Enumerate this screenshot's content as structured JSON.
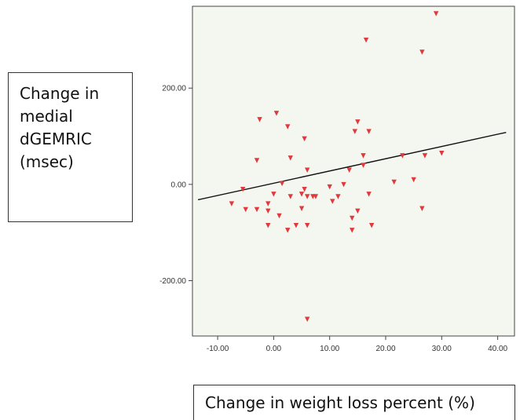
{
  "chart_data": {
    "type": "scatter",
    "title": "",
    "ylabel_lines": [
      "Change in",
      "medial",
      "dGEMRIC",
      "(msec)"
    ],
    "xlabel": "Change in weight loss percent (%)",
    "x_ticks": [
      "-10.00",
      "0.00",
      "10.00",
      "20.00",
      "30.00",
      "40.00"
    ],
    "y_ticks": [
      "200.00",
      "0.00",
      "-200.00"
    ],
    "xlim": [
      -14.5,
      43
    ],
    "ylim": [
      -315,
      370
    ],
    "grid": false,
    "colors": {
      "plot_bg": "#f4f7f0",
      "point": "#e0393e",
      "fit_line": "#111111",
      "axis": "#444444"
    },
    "points": [
      {
        "x": -7.5,
        "y": -40
      },
      {
        "x": -5.5,
        "y": -10
      },
      {
        "x": -5,
        "y": -52
      },
      {
        "x": -3,
        "y": -52
      },
      {
        "x": -3,
        "y": 50
      },
      {
        "x": -2.5,
        "y": 135
      },
      {
        "x": -1,
        "y": -40
      },
      {
        "x": -1,
        "y": -55
      },
      {
        "x": -1,
        "y": -85
      },
      {
        "x": 0,
        "y": -20
      },
      {
        "x": 0.5,
        "y": 148
      },
      {
        "x": 1,
        "y": -65
      },
      {
        "x": 1.5,
        "y": 2
      },
      {
        "x": 2.5,
        "y": -95
      },
      {
        "x": 2.5,
        "y": 120
      },
      {
        "x": 3,
        "y": 55
      },
      {
        "x": 3,
        "y": -25
      },
      {
        "x": 4,
        "y": -85
      },
      {
        "x": 5,
        "y": -50
      },
      {
        "x": 5,
        "y": -20
      },
      {
        "x": 5.5,
        "y": -10
      },
      {
        "x": 5.5,
        "y": 95
      },
      {
        "x": 6,
        "y": 30
      },
      {
        "x": 6,
        "y": -25
      },
      {
        "x": 6,
        "y": -85
      },
      {
        "x": 7,
        "y": -25
      },
      {
        "x": 7.5,
        "y": -25
      },
      {
        "x": 6,
        "y": -280
      },
      {
        "x": 10,
        "y": -5
      },
      {
        "x": 10.5,
        "y": -35
      },
      {
        "x": 11.5,
        "y": -25
      },
      {
        "x": 12.5,
        "y": 0
      },
      {
        "x": 13.5,
        "y": 30
      },
      {
        "x": 14,
        "y": -70
      },
      {
        "x": 14,
        "y": -95
      },
      {
        "x": 14.5,
        "y": 110
      },
      {
        "x": 15,
        "y": 130
      },
      {
        "x": 15,
        "y": -55
      },
      {
        "x": 16,
        "y": 60
      },
      {
        "x": 16,
        "y": 40
      },
      {
        "x": 16.5,
        "y": 300
      },
      {
        "x": 17,
        "y": 110
      },
      {
        "x": 17,
        "y": -20
      },
      {
        "x": 17.5,
        "y": -85
      },
      {
        "x": 21.5,
        "y": 5
      },
      {
        "x": 23,
        "y": 60
      },
      {
        "x": 25,
        "y": 10
      },
      {
        "x": 26.5,
        "y": 275
      },
      {
        "x": 26.5,
        "y": -50
      },
      {
        "x": 27,
        "y": 60
      },
      {
        "x": 29,
        "y": 355
      },
      {
        "x": 30,
        "y": 65
      }
    ],
    "fit_line": {
      "x": [
        -13.5,
        41.5
      ],
      "y": [
        -32,
        108
      ]
    }
  }
}
